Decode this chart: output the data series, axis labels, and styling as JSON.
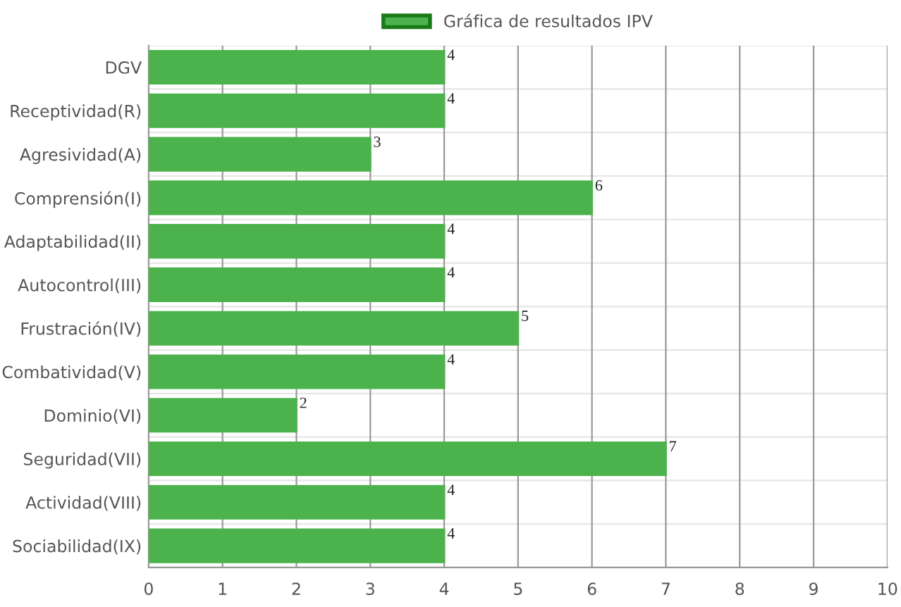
{
  "chart_data": {
    "type": "bar",
    "orientation": "horizontal",
    "categories": [
      "DGV",
      "Receptividad(R)",
      "Agresividad(A)",
      "Comprensión(I)",
      "Adaptabilidad(II)",
      "Autocontrol(III)",
      "Frustración(IV)",
      "Combatividad(V)",
      "Dominio(VI)",
      "Seguridad(VII)",
      "Actividad(VIII)",
      "Sociabilidad(IX)"
    ],
    "series": [
      {
        "name": "Gráfica de resultados IPV",
        "color": "#4cb34c",
        "values": [
          4,
          4,
          3,
          6,
          4,
          4,
          5,
          4,
          2,
          7,
          4,
          4
        ]
      }
    ],
    "xlim": [
      0,
      10
    ],
    "xticks": [
      0,
      1,
      2,
      3,
      4,
      5,
      6,
      7,
      8,
      9,
      10
    ],
    "grid": true,
    "legend": "top",
    "data_labels": true
  }
}
